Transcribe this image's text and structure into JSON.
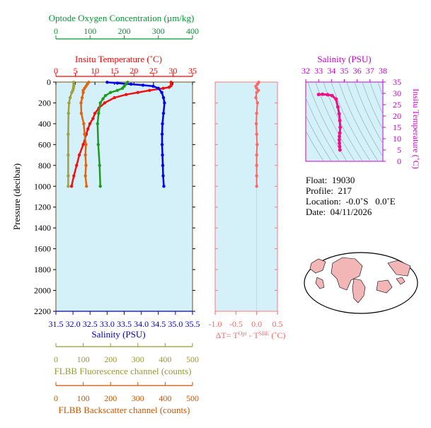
{
  "chart_data": [
    {
      "type": "line",
      "name": "main-profile",
      "ylabel": "Pressure (decibar)",
      "ylim": [
        2200,
        0
      ],
      "yticks": [
        0,
        200,
        400,
        600,
        800,
        1000,
        1200,
        1400,
        1600,
        1800,
        2000,
        2200
      ],
      "axes": {
        "oxygen": {
          "label": "Optode Oxygen Concentration (µm/kg)",
          "range": [
            0,
            400
          ],
          "ticks": [
            0,
            100,
            200,
            300,
            400
          ],
          "color": "#009933"
        },
        "temperature": {
          "label": "Insitu Temperature (˚C)",
          "range": [
            0,
            35
          ],
          "ticks": [
            0,
            5,
            10,
            15,
            20,
            25,
            30,
            35
          ],
          "color": "#ff0000"
        },
        "salinity": {
          "label": "Salinity (PSU)",
          "range": [
            31.5,
            35.5
          ],
          "ticks": [
            "31.5",
            "32.0",
            "32.5",
            "33.0",
            "33.5",
            "34.0",
            "34.5",
            "35.0",
            "35.5"
          ],
          "color": "#0000cc"
        },
        "fluorescence": {
          "label": "FLBB Fluorescence channel (counts)",
          "range": [
            0,
            500
          ],
          "ticks": [
            0,
            100,
            200,
            300,
            400,
            500
          ],
          "color": "#999933"
        },
        "backscatter": {
          "label": "FLBB Backscatter channel (counts)",
          "range": [
            0,
            500
          ],
          "ticks": [
            0,
            100,
            200,
            300,
            400,
            500
          ],
          "color": "#cc5500"
        }
      },
      "series": [
        {
          "axis": "temperature",
          "color": "#ee1111",
          "p": [
            2,
            10,
            20,
            35,
            50,
            60,
            80,
            100,
            120,
            150,
            200,
            250,
            300,
            350,
            400,
            450,
            500,
            600,
            700,
            800,
            900,
            1000
          ],
          "v": [
            29.5,
            29.6,
            29.6,
            29.5,
            29.0,
            27.5,
            24.0,
            21.0,
            18.0,
            15.0,
            12.5,
            11.0,
            10.0,
            9.5,
            8.7,
            8.2,
            7.8,
            7.0,
            6.0,
            5.3,
            4.6,
            4.0
          ]
        },
        {
          "axis": "salinity",
          "color": "#0000ee",
          "p": [
            2,
            10,
            20,
            30,
            40,
            60,
            100,
            150,
            200,
            300,
            400,
            500,
            600,
            700,
            800,
            900,
            1000
          ],
          "v": [
            33.0,
            33.3,
            33.7,
            34.05,
            34.35,
            34.5,
            34.6,
            34.65,
            34.68,
            34.65,
            34.62,
            34.61,
            34.61,
            34.62,
            34.63,
            34.64,
            34.66
          ]
        },
        {
          "axis": "oxygen",
          "color": "#229922",
          "p": [
            2,
            20,
            40,
            60,
            80,
            100,
            130,
            160,
            200,
            300,
            400,
            600,
            800,
            1000
          ],
          "v": [
            210,
            205,
            200,
            195,
            180,
            160,
            145,
            138,
            130,
            125,
            122,
            124,
            128,
            130
          ]
        },
        {
          "axis": "fluorescence",
          "color": "#a0a040",
          "p": [
            2,
            20,
            40,
            60,
            80,
            100,
            150,
            200,
            300,
            500,
            700,
            900,
            1000
          ],
          "v": [
            65,
            66,
            65,
            64,
            62,
            58,
            52,
            48,
            46,
            45,
            45,
            45,
            45
          ]
        },
        {
          "axis": "backscatter",
          "color": "#dd6611",
          "p": [
            2,
            20,
            40,
            60,
            80,
            100,
            150,
            200,
            300,
            400,
            500,
            600,
            700,
            800,
            900,
            1000
          ],
          "v": [
            120,
            115,
            110,
            105,
            100,
            100,
            96,
            92,
            93,
            102,
            105,
            110,
            108,
            110,
            108,
            112
          ]
        }
      ]
    },
    {
      "type": "line",
      "name": "delta-temperature",
      "xlabel": "ΔT= T^Opt - T^SBE (˚C)",
      "xlim": [
        -1.0,
        0.5
      ],
      "xticks": [
        "-1.0",
        "-0.5",
        "0.0",
        "0.5"
      ],
      "ylim": [
        2200,
        0
      ],
      "series": [
        {
          "color": "#ff6666",
          "p": [
            2,
            20,
            40,
            60,
            80,
            100,
            150,
            200,
            300,
            400,
            500,
            600,
            700,
            800,
            900,
            1000
          ],
          "v": [
            0.05,
            0.02,
            -0.02,
            0.0,
            0.04,
            0.0,
            -0.02,
            0.02,
            0.0,
            -0.01,
            0.0,
            0.01,
            0.0,
            0.0,
            0.0,
            0.0
          ]
        }
      ]
    },
    {
      "type": "scatter",
      "name": "ts-diagram",
      "xlabel": "Salinity (PSU)",
      "ylabel": "Insitu Temperature (˚C)",
      "xlim": [
        32,
        38
      ],
      "ylim": [
        0,
        35
      ],
      "xticks": [
        32,
        33,
        34,
        35,
        36,
        37,
        38
      ],
      "yticks": [
        0,
        5,
        10,
        15,
        20,
        25,
        30,
        35
      ],
      "color": "#ee1188",
      "series": [
        {
          "s": [
            33.0,
            33.3,
            33.7,
            34.05,
            34.35,
            34.5,
            34.6,
            34.65,
            34.68,
            34.65,
            34.62,
            34.61,
            34.62,
            34.64,
            34.66
          ],
          "t": [
            29.5,
            29.6,
            29.4,
            29.0,
            27.5,
            24.0,
            21.0,
            18.0,
            15.0,
            12.5,
            11.0,
            9.5,
            8.0,
            6.5,
            5.0
          ]
        }
      ]
    }
  ],
  "info": {
    "float": "Float:  19030",
    "profile": "Profile:  217",
    "location": "Location:  -0.0˚S   0.0˚E",
    "date": "Date:  04/11/2026"
  }
}
